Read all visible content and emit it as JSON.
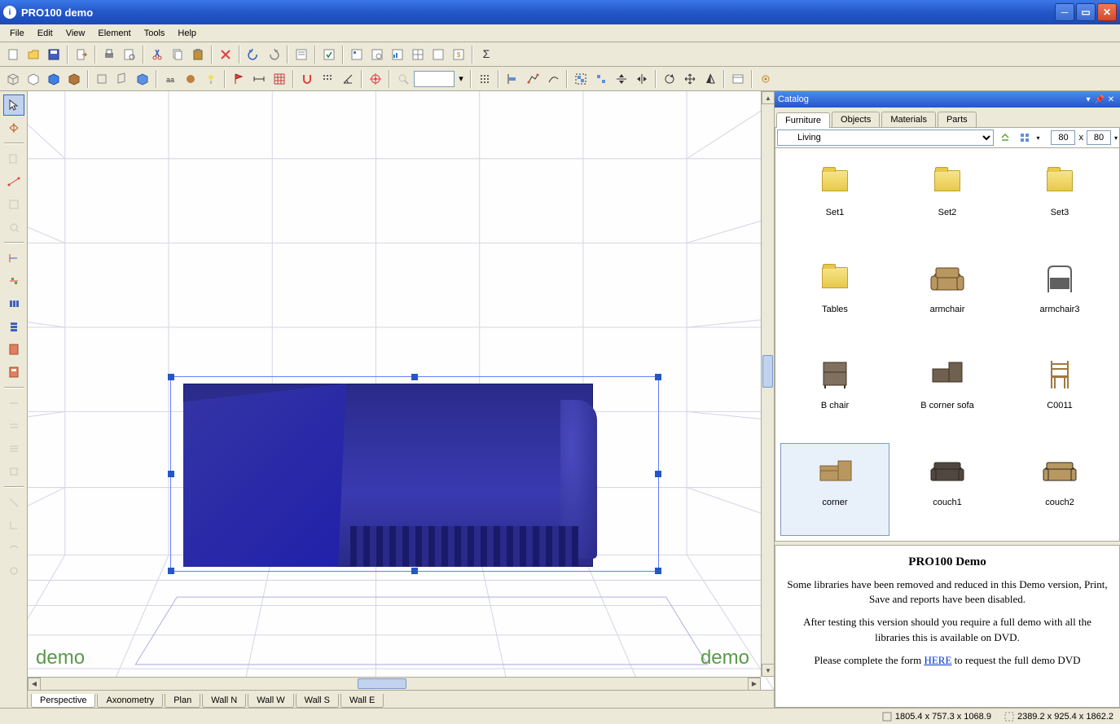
{
  "window": {
    "title": "PRO100 demo"
  },
  "menu": {
    "items": [
      "File",
      "Edit",
      "View",
      "Element",
      "Tools",
      "Help"
    ]
  },
  "viewTabs": {
    "tabs": [
      "Perspective",
      "Axonometry",
      "Plan",
      "Wall N",
      "Wall W",
      "Wall S",
      "Wall E"
    ],
    "active": "Perspective"
  },
  "catalog": {
    "title": "Catalog",
    "tabs": [
      "Furniture",
      "Objects",
      "Materials",
      "Parts"
    ],
    "activeTab": "Furniture",
    "folder": "Living",
    "thumbSize": {
      "w": "80",
      "h": "80"
    },
    "items": [
      {
        "label": "Set1",
        "type": "folder"
      },
      {
        "label": "Set2",
        "type": "folder"
      },
      {
        "label": "Set3",
        "type": "folder"
      },
      {
        "label": "Tables",
        "type": "folder"
      },
      {
        "label": "armchair",
        "type": "armchair",
        "color": "#b89860"
      },
      {
        "label": "armchair3",
        "type": "armchair2",
        "color": "#606060"
      },
      {
        "label": "B chair",
        "type": "chair",
        "color": "#807060"
      },
      {
        "label": "B corner sofa",
        "type": "cornersofa",
        "color": "#706050"
      },
      {
        "label": "C0011",
        "type": "woodchair",
        "color": "#a07840"
      },
      {
        "label": "corner",
        "type": "corner",
        "color": "#b89860",
        "selected": true
      },
      {
        "label": "couch1",
        "type": "couch",
        "color": "#504840"
      },
      {
        "label": "couch2",
        "type": "couch",
        "color": "#b89860"
      }
    ]
  },
  "demoInfo": {
    "title": "PRO100 Demo",
    "p1": "Some libraries have been removed and reduced in this Demo version, Print, Save and reports have been disabled.",
    "p2": "After testing this version should you require a full demo with all the libraries this is available on DVD.",
    "p3a": "Please complete the form ",
    "p3link": "HERE",
    "p3b": " to request the full demo DVD"
  },
  "statusbar": {
    "dim1": "1805.4 x 757.3 x 1068.9",
    "dim2": "2389.2 x 925.4 x 1862.2"
  },
  "watermark": "demo",
  "colors": {
    "sofa_fill": "#3030a0",
    "sofa_border": "#6080ff",
    "selection_handle": "#2456c7",
    "grid_line": "#d5d5e8",
    "background": "#fefefe"
  }
}
